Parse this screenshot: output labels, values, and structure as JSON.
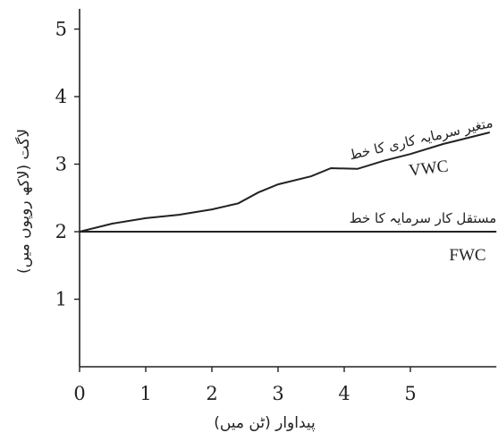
{
  "chart_data": {
    "type": "line",
    "xlabel": "پیداوار (ٹن میں)",
    "ylabel": "لاگت (لاکھ روپوں میں)",
    "xlim": [
      0,
      6.3
    ],
    "ylim": [
      0,
      5.3
    ],
    "x_ticks": [
      "0",
      "1",
      "2",
      "3",
      "4",
      "5"
    ],
    "y_ticks": [
      "1",
      "2",
      "3",
      "4",
      "5"
    ],
    "grid": false,
    "series": [
      {
        "name": "VWC",
        "label": "متغیر سرمایہ کاری کا خط",
        "x": [
          0,
          0.5,
          1,
          1.5,
          2,
          2.4,
          2.7,
          3,
          3.5,
          3.8,
          4.2,
          4.6,
          5,
          5.5,
          6.2
        ],
        "y": [
          2.0,
          2.12,
          2.2,
          2.25,
          2.33,
          2.42,
          2.58,
          2.7,
          2.82,
          2.94,
          2.93,
          3.05,
          3.15,
          3.3,
          3.47
        ]
      },
      {
        "name": "FWC",
        "label": "مستقل کار سرمایہ کا خط",
        "x": [
          0,
          6.3
        ],
        "y": [
          2.0,
          2.0
        ]
      }
    ]
  }
}
